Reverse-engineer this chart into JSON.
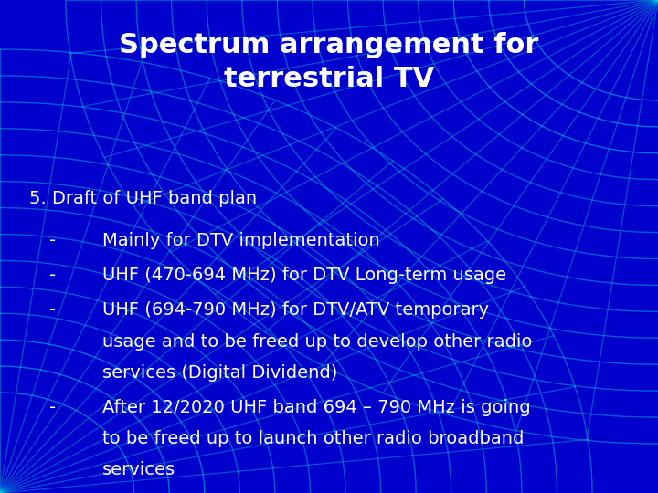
{
  "title_line1": "Spectrum arrangement for",
  "title_line2": "terrestrial TV",
  "background_color": "#0000cc",
  "title_color": "#ffffff",
  "text_color": "#ffffff",
  "grid_color": "#00ccdd",
  "title_fontsize": 22,
  "body_fontsize": 14,
  "heading": "5. Draft of UHF band plan",
  "bullets": [
    {
      "dash": "-",
      "lines": [
        "Mainly for DTV implementation"
      ]
    },
    {
      "dash": "-",
      "lines": [
        "UHF (470-694 MHz) for DTV Long-term usage"
      ]
    },
    {
      "dash": "-",
      "lines": [
        "UHF (694-790 MHz) for DTV/ATV temporary",
        "usage and to be freed up to develop other radio",
        "services (Digital Dividend)"
      ]
    },
    {
      "dash": "-",
      "lines": [
        "After 12/2020 UHF band 694 – 790 MHz is going",
        "to be freed up to launch other radio broadband",
        "services"
      ]
    }
  ]
}
